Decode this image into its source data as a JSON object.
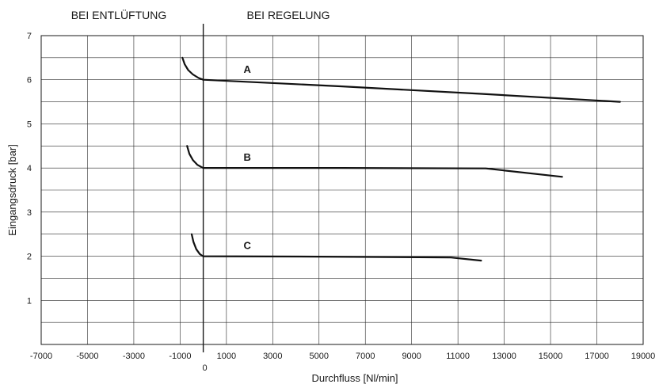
{
  "chart_data": {
    "type": "line",
    "title": "",
    "xlabel": "Durchfluss [Nl/min]",
    "ylabel": "Eingangsdruck [bar]",
    "xlim": [
      -7000,
      19000
    ],
    "ylim": [
      0,
      7
    ],
    "grid": true,
    "legend": "none",
    "section_labels": {
      "left": "BEI ENTLÜFTUNG",
      "right": "BEI REGELUNG"
    },
    "x_ticks": [
      {
        "value": -7000,
        "label": "-7000"
      },
      {
        "value": -5000,
        "label": "-5000"
      },
      {
        "value": -3000,
        "label": "-3000"
      },
      {
        "value": -1000,
        "label": "-1000"
      },
      {
        "value": 0,
        "label": "0"
      },
      {
        "value": 1000,
        "label": "1000"
      },
      {
        "value": 3000,
        "label": "3000"
      },
      {
        "value": 5000,
        "label": "5000"
      },
      {
        "value": 7000,
        "label": "7000"
      },
      {
        "value": 9000,
        "label": "9000"
      },
      {
        "value": 11000,
        "label": "11000"
      },
      {
        "value": 13000,
        "label": "13000"
      },
      {
        "value": 15000,
        "label": "15000"
      },
      {
        "value": 17000,
        "label": "17000"
      },
      {
        "value": 19000,
        "label": "19000"
      }
    ],
    "x_grid": [
      -7000,
      -5000,
      -3000,
      -1000,
      1000,
      3000,
      5000,
      7000,
      9000,
      11000,
      13000,
      15000,
      17000,
      19000
    ],
    "y_ticks": [
      {
        "value": 1,
        "label": "1"
      },
      {
        "value": 2,
        "label": "2"
      },
      {
        "value": 3,
        "label": "3"
      },
      {
        "value": 4,
        "label": "4"
      },
      {
        "value": 5,
        "label": "5"
      },
      {
        "value": 6,
        "label": "6"
      },
      {
        "value": 7,
        "label": "7"
      }
    ],
    "y_grid": [
      0.5,
      1,
      1.5,
      2,
      2.5,
      3,
      3.5,
      4,
      4.5,
      5,
      5.5,
      6,
      6.5
    ],
    "series": [
      {
        "name": "A",
        "label_at": {
          "x": 1900,
          "y": 6.25
        },
        "points": [
          {
            "x": -900,
            "y": 6.5
          },
          {
            "x": -800,
            "y": 6.35
          },
          {
            "x": -650,
            "y": 6.22
          },
          {
            "x": -450,
            "y": 6.12
          },
          {
            "x": -200,
            "y": 6.04
          },
          {
            "x": 0,
            "y": 6.0
          },
          {
            "x": 6000,
            "y": 5.85
          },
          {
            "x": 12000,
            "y": 5.68
          },
          {
            "x": 18000,
            "y": 5.5
          }
        ]
      },
      {
        "name": "B",
        "label_at": {
          "x": 1900,
          "y": 4.25
        },
        "points": [
          {
            "x": -700,
            "y": 4.5
          },
          {
            "x": -600,
            "y": 4.32
          },
          {
            "x": -450,
            "y": 4.18
          },
          {
            "x": -250,
            "y": 4.07
          },
          {
            "x": -80,
            "y": 4.02
          },
          {
            "x": 0,
            "y": 4.0
          },
          {
            "x": 6000,
            "y": 4.0
          },
          {
            "x": 12200,
            "y": 3.99
          },
          {
            "x": 15500,
            "y": 3.8
          }
        ]
      },
      {
        "name": "C",
        "label_at": {
          "x": 1900,
          "y": 2.25
        },
        "points": [
          {
            "x": -500,
            "y": 2.5
          },
          {
            "x": -420,
            "y": 2.32
          },
          {
            "x": -300,
            "y": 2.16
          },
          {
            "x": -150,
            "y": 2.05
          },
          {
            "x": -40,
            "y": 2.01
          },
          {
            "x": 0,
            "y": 2.0
          },
          {
            "x": 5000,
            "y": 1.99
          },
          {
            "x": 10700,
            "y": 1.97
          },
          {
            "x": 12000,
            "y": 1.9
          }
        ]
      }
    ]
  }
}
